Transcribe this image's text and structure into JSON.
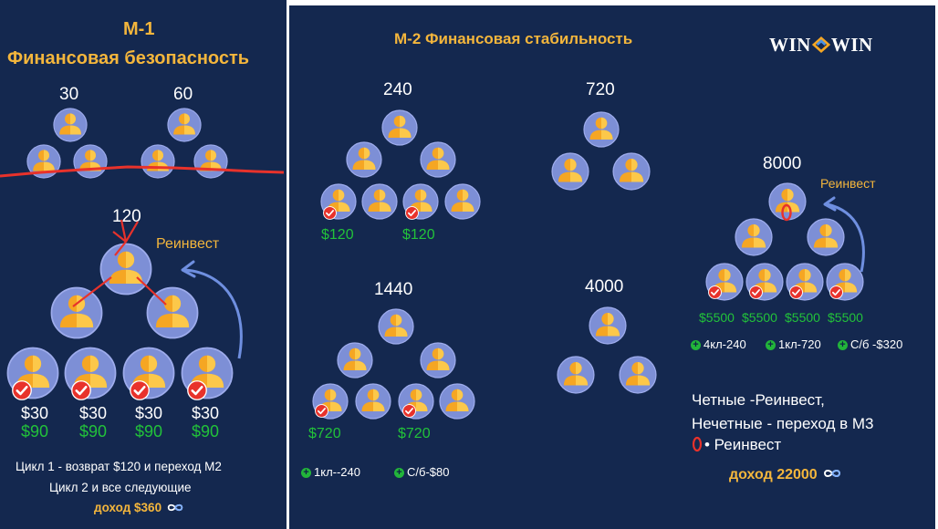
{
  "m1": {
    "title_line1": "M-1",
    "title_line2": "Финансовая безопасность",
    "label_30": "30",
    "label_60": "60",
    "label_120": "120",
    "reinvest": "Реинвест",
    "payouts": [
      "$30",
      "$30",
      "$30",
      "$30"
    ],
    "payouts_total": [
      "$90",
      "$90",
      "$90",
      "$90"
    ],
    "note_line1": "Цикл 1 - возврат $120 и переход М2",
    "note_line2": "Цикл 2 и все следующие",
    "income": "доход $360"
  },
  "m2": {
    "title": "M-2 Финансовая стабильность",
    "label_240": "240",
    "label_720": "720",
    "label_1440": "1440",
    "label_4000": "4000",
    "label_8000": "8000",
    "payouts_240": [
      "$120",
      "$120"
    ],
    "payouts_1440": [
      "$720",
      "$720"
    ],
    "payouts_8000": [
      "$5500",
      "$5500",
      "$5500",
      "$5500"
    ],
    "reinvest": "Реинвест",
    "legend_1440": [
      "1кл--240",
      "С/б-$80"
    ],
    "legend_8000": [
      "4кл-240",
      "1кл-720",
      "С/б -$320"
    ],
    "rule_line1": "Четные -Реинвест,",
    "rule_line2": "Нечетные - переход в М3",
    "rule_line3": "• Реинвест",
    "income": "доход 22000"
  },
  "logo": {
    "left": "WIN",
    "right": "WIN"
  },
  "colors": {
    "background": "#14284f",
    "accent": "#f4b63c",
    "green": "#22c23a",
    "red_mark": "#e8322b",
    "arrow_blue": "#6f8fe0"
  }
}
